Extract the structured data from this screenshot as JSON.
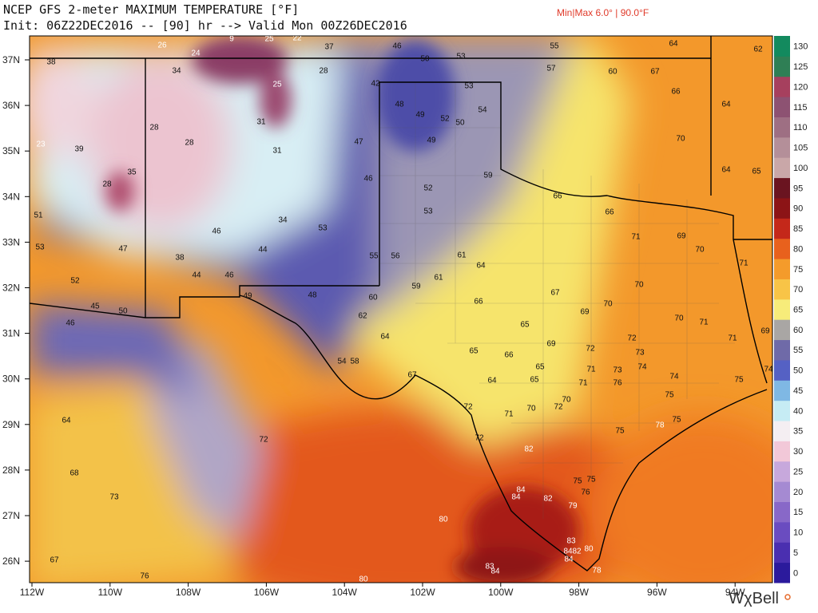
{
  "header": {
    "title": "NCEP GFS 2-meter MAXIMUM TEMPERATURE [°F]",
    "init": "Init: 06Z22DEC2016 -- [90] hr --> Valid Mon 00Z26DEC2016",
    "min_max": "Min|Max 6.0° | 90.0°F"
  },
  "map": {
    "lat_labels": [
      "37N",
      "36N",
      "35N",
      "34N",
      "33N",
      "32N",
      "31N",
      "30N",
      "29N",
      "28N",
      "27N",
      "26N"
    ],
    "lon_labels": [
      "112W",
      "110W",
      "108W",
      "106W",
      "104W",
      "102W",
      "100W",
      "98W",
      "96W",
      "94W"
    ],
    "temperature_labels": [
      38,
      9,
      26,
      24,
      25,
      22,
      37,
      46,
      50,
      53,
      55,
      64,
      62,
      34,
      28,
      25,
      42,
      48,
      53,
      49,
      52,
      50,
      54,
      49,
      57,
      60,
      67,
      66,
      64,
      23,
      39,
      28,
      28,
      31,
      31,
      35,
      28,
      47,
      46,
      52,
      53,
      59,
      66,
      66,
      70,
      70,
      34,
      53,
      47,
      38,
      44,
      52,
      45,
      50,
      46,
      49,
      48,
      55,
      56,
      61,
      64,
      61,
      59,
      60,
      62,
      64,
      54,
      58,
      67,
      66,
      65,
      65,
      66,
      65,
      64,
      65,
      67,
      69,
      70,
      71,
      69,
      70,
      70,
      71,
      71,
      72,
      73,
      73,
      74,
      74,
      76,
      72,
      69,
      71,
      71,
      71,
      70,
      72,
      70,
      72,
      75,
      75,
      78,
      75,
      72,
      82,
      75,
      75,
      76,
      79,
      82,
      84,
      84,
      83,
      84,
      82,
      80,
      84,
      78,
      80,
      83,
      84,
      80,
      72,
      68,
      73,
      64,
      67,
      76,
      65,
      64,
      71,
      69,
      75,
      74,
      51,
      53,
      46,
      44,
      46
    ]
  },
  "colorbar": {
    "ticks": [
      0,
      5,
      10,
      15,
      20,
      25,
      30,
      35,
      40,
      45,
      50,
      55,
      60,
      65,
      70,
      75,
      80,
      85,
      90,
      95,
      100,
      105,
      110,
      115,
      120,
      125,
      130
    ],
    "colors": [
      "#2b1a9c",
      "#4a2fb0",
      "#6a4cc0",
      "#8868c8",
      "#a58ad2",
      "#c7a8dc",
      "#f2c8d8",
      "#f4eef2",
      "#c6ecf4",
      "#7fb8e4",
      "#5561c4",
      "#6f6aa8",
      "#a9a6a4",
      "#f7ec7a",
      "#f8c447",
      "#f49b2b",
      "#e8611d",
      "#c4281a",
      "#8c1416",
      "#6a1420",
      "#c9a7a8",
      "#b48f99",
      "#9e6f83",
      "#8d5272",
      "#a6405e",
      "#2f7f55",
      "#138a5e"
    ]
  },
  "footer": {
    "brand": "WχBell"
  }
}
